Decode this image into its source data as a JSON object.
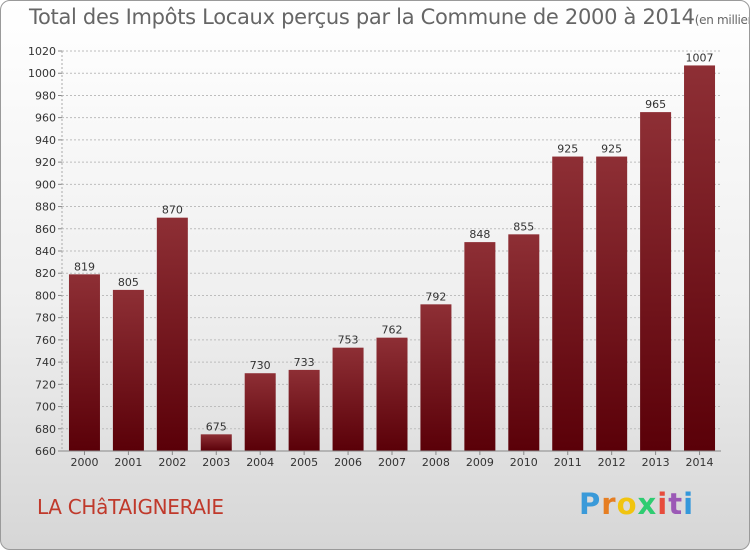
{
  "title": "Total des Impôts Locaux perçus par la Commune de 2000 à 2014",
  "unit_note": "(en milliers d'€)",
  "commune": "LA CHâTAIGNERAIE",
  "brand": {
    "letters": [
      "P",
      "r",
      "o",
      "x",
      "i",
      "t",
      "i"
    ],
    "colors": [
      "#3a9ad9",
      "#e67e22",
      "#f1c40f",
      "#2ecc71",
      "#e74c3c",
      "#9b59b6",
      "#3498db"
    ]
  },
  "colors": {
    "bar_top": "#8e2f35",
    "bar_bottom": "#5a0008",
    "grid": "#bdbdbd"
  },
  "chart_data": {
    "type": "bar",
    "categories": [
      "2000",
      "2001",
      "2002",
      "2003",
      "2004",
      "2005",
      "2006",
      "2007",
      "2008",
      "2009",
      "2010",
      "2011",
      "2012",
      "2013",
      "2014"
    ],
    "values": [
      819,
      805,
      870,
      675,
      730,
      733,
      753,
      762,
      792,
      848,
      855,
      925,
      925,
      965,
      1007
    ],
    "ylim": [
      660,
      1020
    ],
    "ytick_step": 20,
    "grid": true
  }
}
